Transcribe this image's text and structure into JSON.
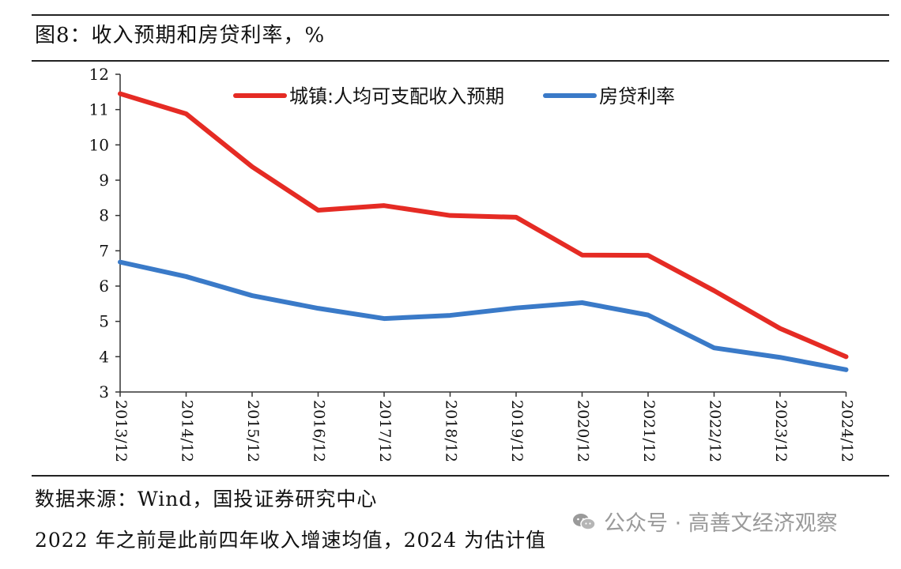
{
  "title": "图8：收入预期和房贷利率，%",
  "source": "数据来源：Wind，国投证券研究中心",
  "note": "2022 年之前是此前四年收入增速均值，2024 为估计值",
  "watermark": {
    "text": "公众号 · 高善文经济观察",
    "icon": "wechat-icon"
  },
  "chart_data": {
    "type": "line",
    "title": "",
    "xlabel": "",
    "ylabel": "",
    "ylim": [
      3,
      12
    ],
    "yticks": [
      3,
      4,
      5,
      6,
      7,
      8,
      9,
      10,
      11,
      12
    ],
    "categories": [
      "2013/12",
      "2014/12",
      "2015/12",
      "2016/12",
      "2017/12",
      "2018/12",
      "2019/12",
      "2020/12",
      "2021/12",
      "2022/12",
      "2023/12",
      "2024/12"
    ],
    "grid": false,
    "legend_position": "top",
    "series": [
      {
        "name": "城镇:人均可支配收入预期",
        "color": "#e52b24",
        "values": [
          11.45,
          10.88,
          9.38,
          8.15,
          8.28,
          8.0,
          7.95,
          6.88,
          6.87,
          5.87,
          4.8,
          4.0
        ]
      },
      {
        "name": "房贷利率",
        "color": "#3a7ac8",
        "values": [
          6.68,
          6.27,
          5.73,
          5.37,
          5.08,
          5.17,
          5.38,
          5.53,
          5.18,
          4.25,
          3.98,
          3.63
        ]
      }
    ]
  }
}
